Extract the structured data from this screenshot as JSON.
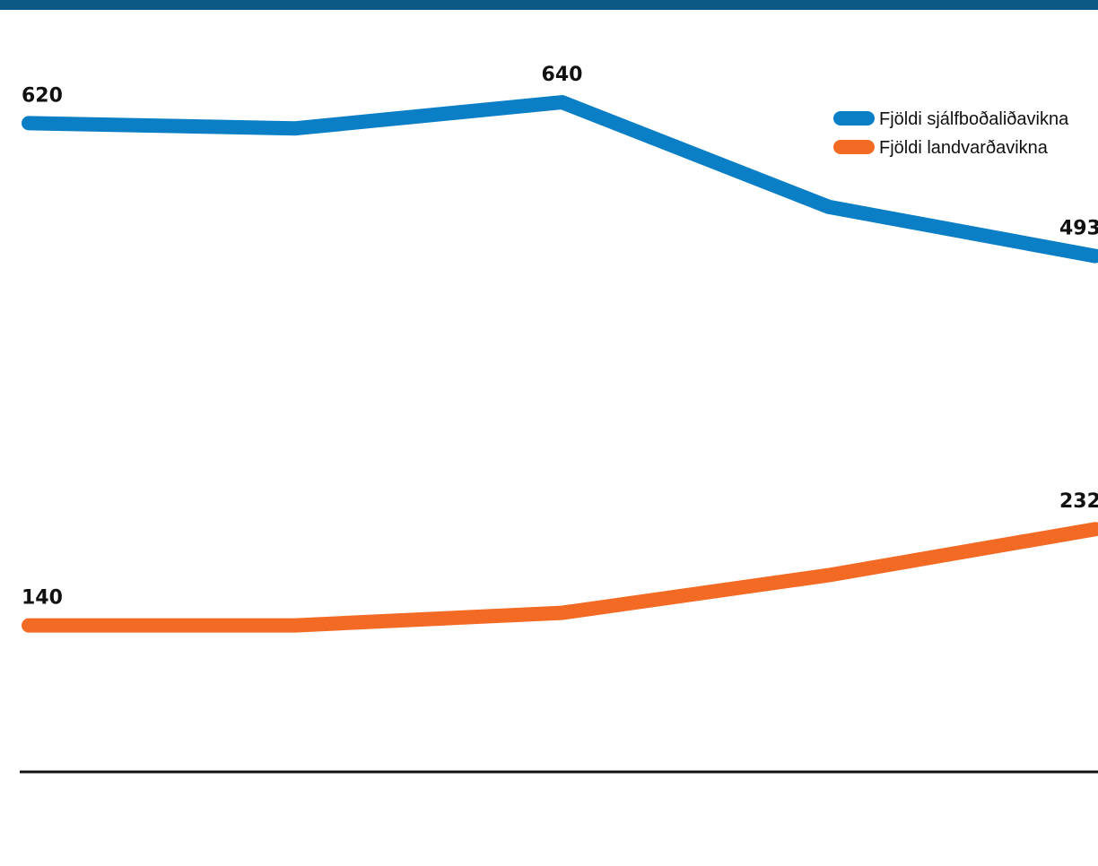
{
  "colors": {
    "header_bar": "#0b5a86",
    "axis": "#111111",
    "series_blue": "#0a7fc6",
    "series_orange": "#f26a24"
  },
  "chart_data": {
    "type": "line",
    "x": [
      1,
      2,
      3,
      4,
      5
    ],
    "ylim": [
      0,
      700
    ],
    "legend_position": "top-right",
    "grid": false,
    "series": [
      {
        "name": "Fjöldi sjálfboðaliðavikna",
        "color": "#0a7fc6",
        "values": [
          620,
          615,
          640,
          540,
          493
        ],
        "labels": [
          "620",
          "",
          "640",
          "",
          "493"
        ]
      },
      {
        "name": "Fjöldi landvarðavikna",
        "color": "#f26a24",
        "values": [
          140,
          140,
          152,
          188,
          232
        ],
        "labels": [
          "140",
          "",
          "",
          "",
          "232"
        ]
      }
    ]
  }
}
